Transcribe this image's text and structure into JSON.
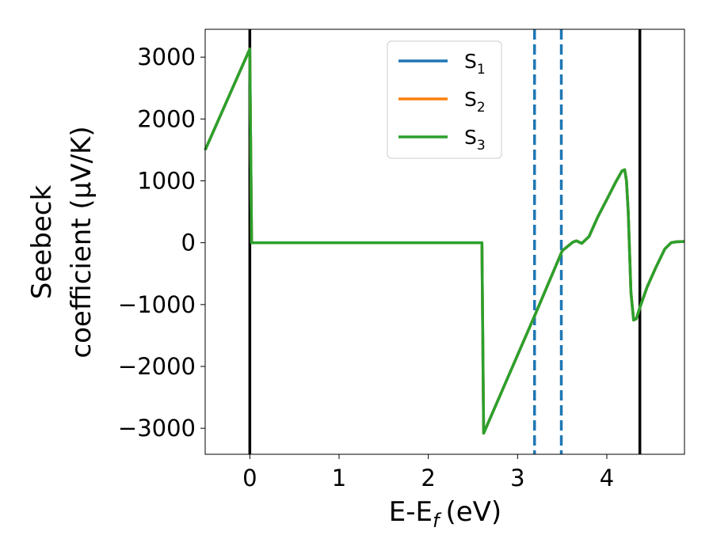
{
  "chart_data": {
    "type": "line",
    "xlabel": "E-E",
    "xlabel_sub": "f",
    "xlabel_unit": "(eV)",
    "ylabel_line1": "Seebeck",
    "ylabel_line2": "coefficient  (μV/K)",
    "xlim": [
      -0.5,
      4.87
    ],
    "ylim": [
      -3420,
      3450
    ],
    "xticks": [
      {
        "value": 0,
        "label": "0"
      },
      {
        "value": 1,
        "label": "1"
      },
      {
        "value": 2,
        "label": "2"
      },
      {
        "value": 3,
        "label": "3"
      },
      {
        "value": 4,
        "label": "4"
      }
    ],
    "yticks": [
      {
        "value": 3000,
        "label": "3000"
      },
      {
        "value": 2000,
        "label": "2000"
      },
      {
        "value": 1000,
        "label": "1000"
      },
      {
        "value": 0,
        "label": "0"
      },
      {
        "value": -1000,
        "label": "−1000"
      },
      {
        "value": -2000,
        "label": "−2000"
      },
      {
        "value": -3000,
        "label": "−3000"
      }
    ],
    "grid": false,
    "legend_position": "top-center",
    "x": [
      -0.5,
      0.0,
      0.02,
      2.6,
      2.62,
      3.2,
      3.5,
      3.62,
      3.66,
      3.72,
      3.8,
      3.9,
      4.0,
      4.1,
      4.17,
      4.2,
      4.22,
      4.24,
      4.27,
      4.3,
      4.33,
      4.37,
      4.45,
      4.55,
      4.65,
      4.72,
      4.78,
      4.87
    ],
    "series": [
      {
        "name": "S",
        "sub": "1",
        "color": "#1f77b4",
        "values": [
          1500,
          3130,
          0,
          0,
          -3080,
          -1150,
          -130,
          10,
          30,
          -10,
          100,
          420,
          700,
          980,
          1160,
          1180,
          1000,
          500,
          -800,
          -1250,
          -1230,
          -1050,
          -720,
          -400,
          -100,
          0,
          15,
          20
        ]
      },
      {
        "name": "S",
        "sub": "2",
        "color": "#ff7f0e",
        "values": [
          1500,
          3130,
          0,
          0,
          -3080,
          -1150,
          -130,
          10,
          30,
          -10,
          100,
          420,
          700,
          980,
          1160,
          1180,
          1000,
          500,
          -800,
          -1250,
          -1230,
          -1050,
          -720,
          -400,
          -100,
          0,
          15,
          20
        ]
      },
      {
        "name": "S",
        "sub": "3",
        "color": "#2ca02c",
        "values": [
          1500,
          3130,
          0,
          0,
          -3080,
          -1150,
          -130,
          10,
          30,
          -10,
          100,
          420,
          700,
          980,
          1160,
          1180,
          1000,
          500,
          -800,
          -1250,
          -1230,
          -1050,
          -720,
          -400,
          -100,
          0,
          15,
          20
        ]
      }
    ],
    "vlines": [
      {
        "x": 0.0,
        "color": "#000000",
        "style": "solid"
      },
      {
        "x": 4.37,
        "color": "#000000",
        "style": "solid"
      },
      {
        "x": 3.19,
        "color": "#1f77b4",
        "style": "dashed"
      },
      {
        "x": 3.49,
        "color": "#1f77b4",
        "style": "dashed"
      }
    ]
  }
}
